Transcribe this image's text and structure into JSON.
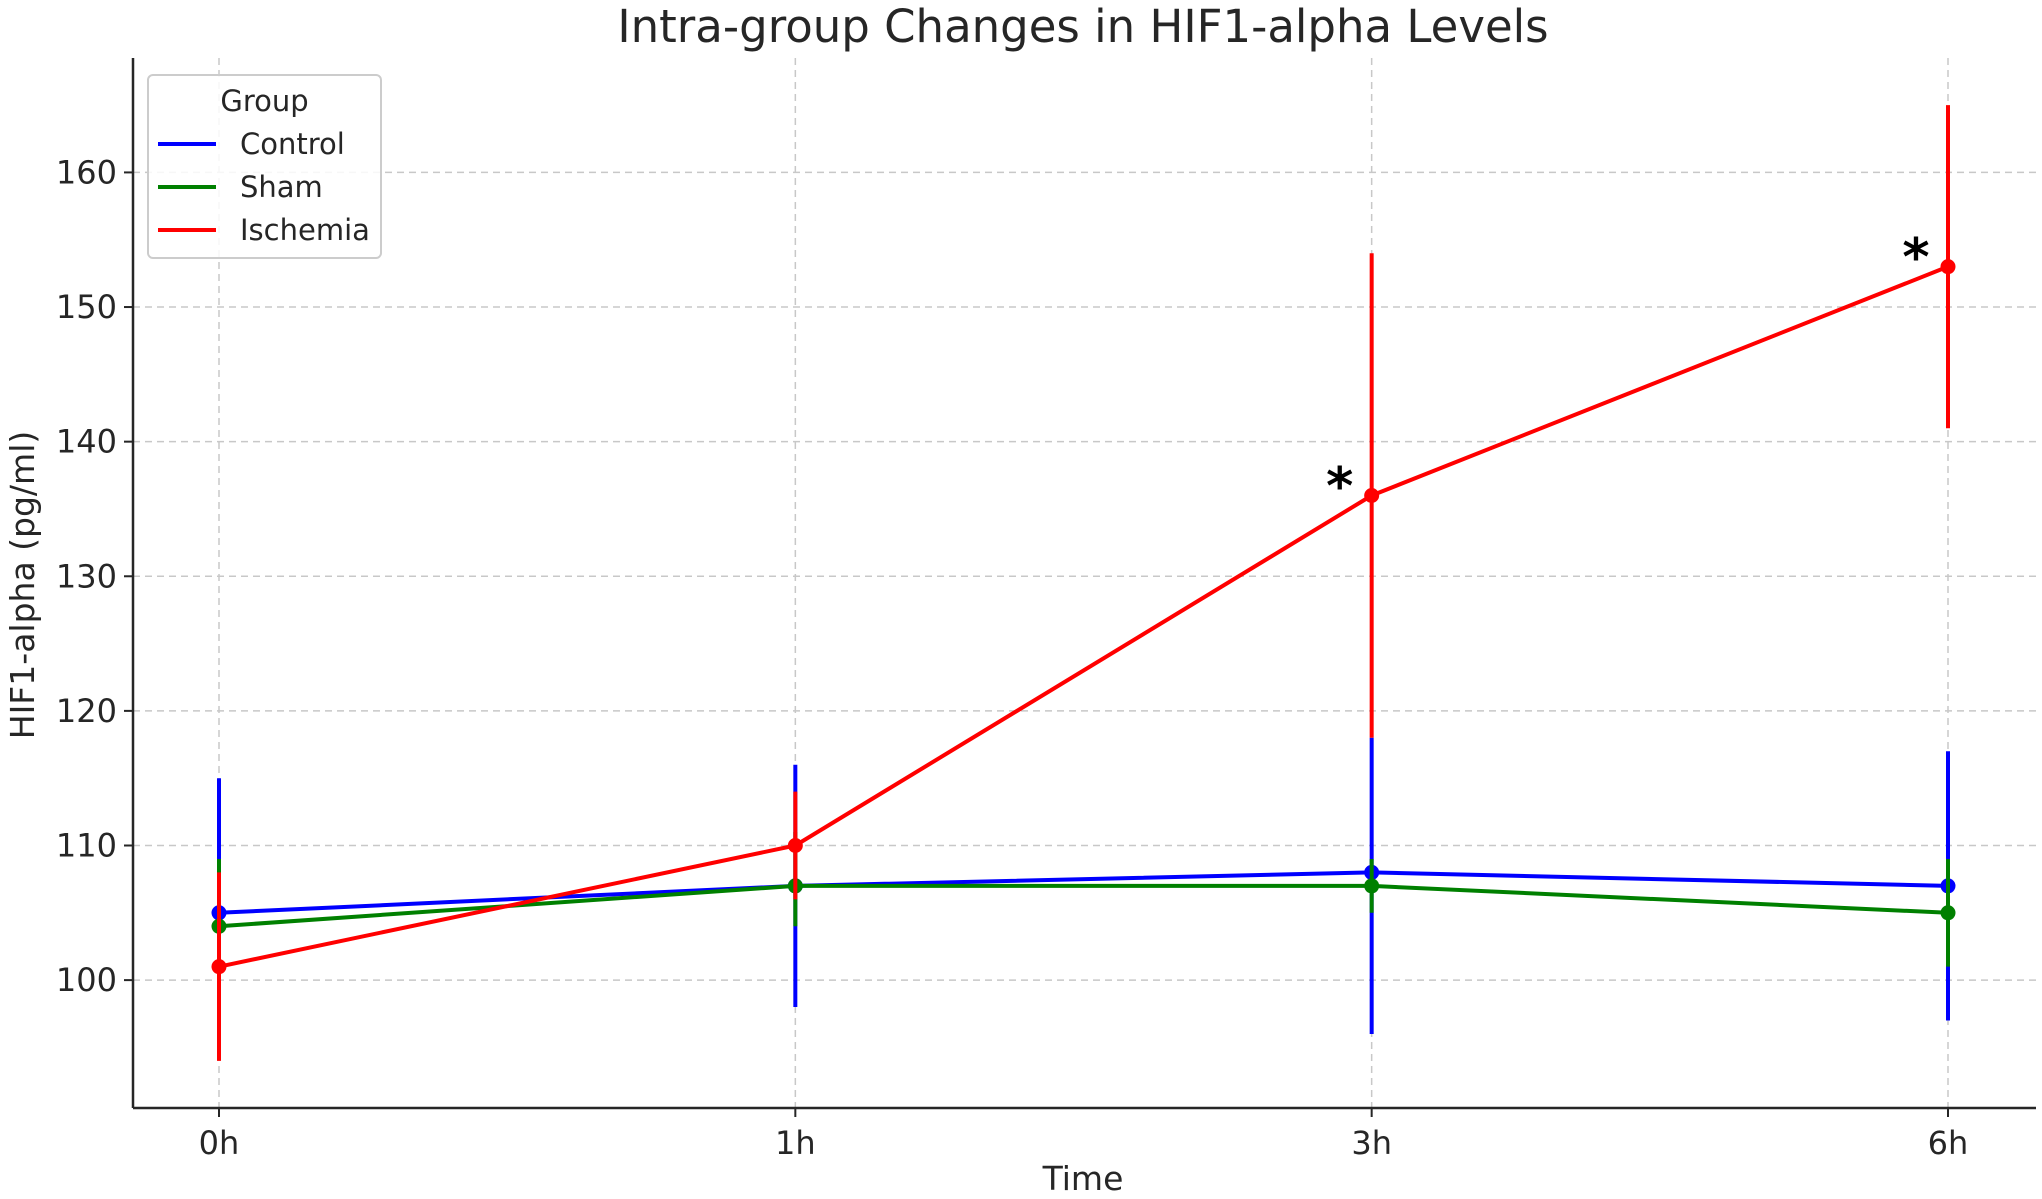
{
  "chart_data": {
    "type": "line",
    "title": "Intra-group Changes in HIF1-alpha Levels",
    "xlabel": "Time",
    "ylabel": "HIF1-alpha (pg/ml)",
    "categories": [
      "0h",
      "1h",
      "3h",
      "6h"
    ],
    "ylim": [
      90.5,
      168.5
    ],
    "yticks": [
      100,
      110,
      120,
      130,
      140,
      150,
      160
    ],
    "grid": true,
    "legend": {
      "title": "Group",
      "placement": "top-left"
    },
    "series": [
      {
        "name": "Control",
        "color": "#0000ff",
        "values": [
          105,
          107,
          108,
          107
        ],
        "error_low": [
          95,
          98,
          96,
          97
        ],
        "error_high": [
          115,
          116,
          118,
          117
        ]
      },
      {
        "name": "Sham",
        "color": "#008000",
        "values": [
          104,
          107,
          107,
          105
        ],
        "error_low": [
          98,
          104,
          105,
          101
        ],
        "error_high": [
          109,
          111,
          109,
          109
        ]
      },
      {
        "name": "Ischemia",
        "color": "#ff0000",
        "values": [
          101,
          110,
          136,
          153
        ],
        "error_low": [
          94,
          106,
          118,
          141
        ],
        "error_high": [
          108,
          114,
          154,
          165
        ]
      }
    ],
    "annotations": [
      {
        "category": "3h",
        "y": 137,
        "text": "*"
      },
      {
        "category": "6h",
        "y": 154,
        "text": "*"
      }
    ]
  }
}
